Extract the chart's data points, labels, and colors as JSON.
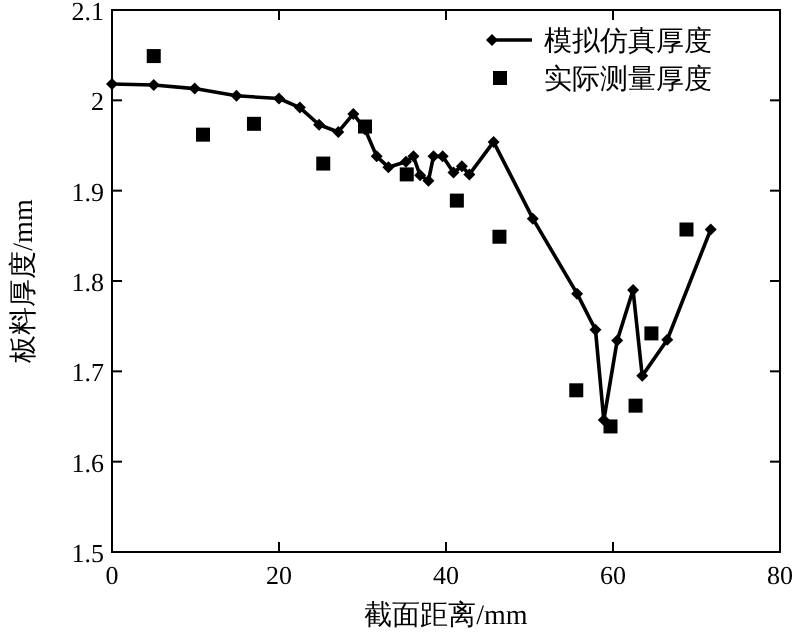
{
  "chart_data": {
    "type": "line",
    "xlabel": "截面距离/mm",
    "ylabel": "板料厚度/mm",
    "xlim": [
      0,
      80
    ],
    "xticks": [
      0,
      20,
      40,
      60,
      80
    ],
    "ylim": [
      1.5,
      2.1
    ],
    "yticks": [
      1.5,
      1.6,
      1.7,
      1.8,
      1.9,
      2.0,
      2.1
    ],
    "legend": "top right",
    "grid": false,
    "series": [
      {
        "name": "模拟仿真厚度",
        "color": "#000000",
        "marker": "diamond",
        "line_style": "solid",
        "x": [
          0,
          5,
          9.9,
          14.9,
          20,
          22.5,
          24.8,
          27.1,
          28.9,
          30.3,
          31.7,
          33.1,
          35.2,
          36.1,
          36.9,
          37.9,
          38.5,
          39.6,
          40.9,
          41.9,
          42.8,
          45.7,
          50.4,
          55.7,
          57.9,
          58.9,
          60.5,
          62.4,
          63.5,
          66.5,
          71.7
        ],
        "values": [
          2.018,
          2.017,
          2.013,
          2.005,
          2.002,
          1.992,
          1.973,
          1.965,
          1.985,
          1.968,
          1.938,
          1.926,
          1.932,
          1.938,
          1.917,
          1.911,
          1.938,
          1.938,
          1.92,
          1.927,
          1.918,
          1.954,
          1.869,
          1.786,
          1.746,
          1.646,
          1.734,
          1.79,
          1.695,
          1.735,
          1.857
        ]
      },
      {
        "name": "实际测量厚度",
        "type": "scatter",
        "color": "#000000",
        "marker": "square",
        "x": [
          5,
          10.9,
          17,
          25.3,
          30.3,
          35.3,
          41.3,
          46.4,
          55.6,
          59.7,
          62.7,
          64.6,
          68.8
        ],
        "values": [
          2.049,
          1.962,
          1.974,
          1.93,
          1.971,
          1.918,
          1.889,
          1.849,
          1.679,
          1.639,
          1.662,
          1.742,
          1.857
        ]
      }
    ]
  }
}
